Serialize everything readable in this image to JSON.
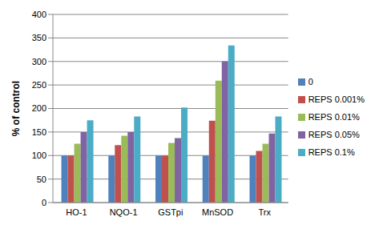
{
  "chart_data": {
    "type": "bar",
    "y_label": "% of control",
    "categories": [
      "HO-1",
      "NQO-1",
      "GSTpi",
      "MnSOD",
      "Trx"
    ],
    "series": [
      {
        "name": "0",
        "color": "#4f81bd",
        "values": [
          100,
          100,
          100,
          100,
          100
        ]
      },
      {
        "name": "REPS 0.001%",
        "color": "#c0504d",
        "values": [
          100,
          122,
          100,
          174,
          110
        ]
      },
      {
        "name": "REPS 0.01%",
        "color": "#9bbb59",
        "values": [
          125,
          142,
          127,
          259,
          125
        ]
      },
      {
        "name": "REPS 0.05%",
        "color": "#8064a2",
        "values": [
          150,
          150,
          137,
          300,
          147
        ]
      },
      {
        "name": "REPS 0.1%",
        "color": "#4bacc6",
        "values": [
          175,
          183,
          202,
          334,
          183
        ]
      }
    ],
    "ylim": [
      0,
      400
    ],
    "yticks": [
      0,
      50,
      100,
      150,
      200,
      250,
      300,
      350,
      400
    ],
    "grid": true,
    "legend": "right"
  }
}
